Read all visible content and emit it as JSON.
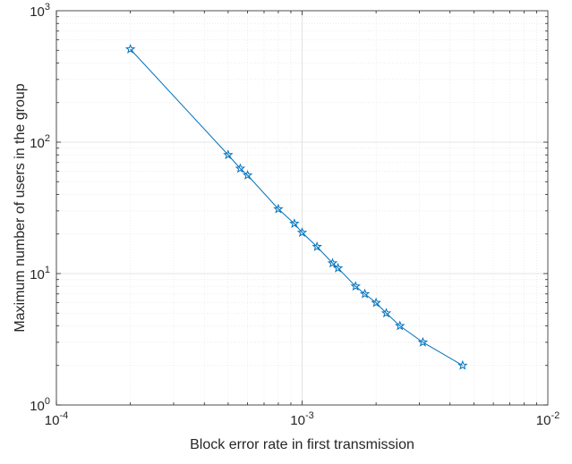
{
  "chart_data": {
    "type": "line",
    "title": "",
    "xlabel": "Block error rate in first transmission",
    "ylabel": "Maximum number of users in the group",
    "xscale": "log",
    "yscale": "log",
    "xlim": [
      0.0001,
      0.01
    ],
    "ylim": [
      1,
      1000
    ],
    "grid": true,
    "minor_grid": true,
    "x_ticks": [
      {
        "value": 0.0001,
        "base": "10",
        "exp": "-4"
      },
      {
        "value": 0.001,
        "base": "10",
        "exp": "-3"
      },
      {
        "value": 0.01,
        "base": "10",
        "exp": "-2"
      }
    ],
    "y_ticks": [
      {
        "value": 1,
        "base": "10",
        "exp": "0"
      },
      {
        "value": 10,
        "base": "10",
        "exp": "1"
      },
      {
        "value": 100,
        "base": "10",
        "exp": "2"
      },
      {
        "value": 1000,
        "base": "10",
        "exp": "3"
      }
    ],
    "series": [
      {
        "color": "#0072bd",
        "marker": "star",
        "points": [
          [
            0.0002,
            510
          ],
          [
            0.0005,
            80
          ],
          [
            0.00056,
            63
          ],
          [
            0.0006,
            56
          ],
          [
            0.0008,
            31
          ],
          [
            0.00093,
            24
          ],
          [
            0.001,
            20.5
          ],
          [
            0.00115,
            16
          ],
          [
            0.00133,
            12
          ],
          [
            0.0014,
            11
          ],
          [
            0.00165,
            8
          ],
          [
            0.0018,
            7
          ],
          [
            0.002,
            6
          ],
          [
            0.0022,
            5
          ],
          [
            0.0025,
            4
          ],
          [
            0.0031,
            3
          ],
          [
            0.0045,
            2
          ]
        ]
      }
    ]
  }
}
